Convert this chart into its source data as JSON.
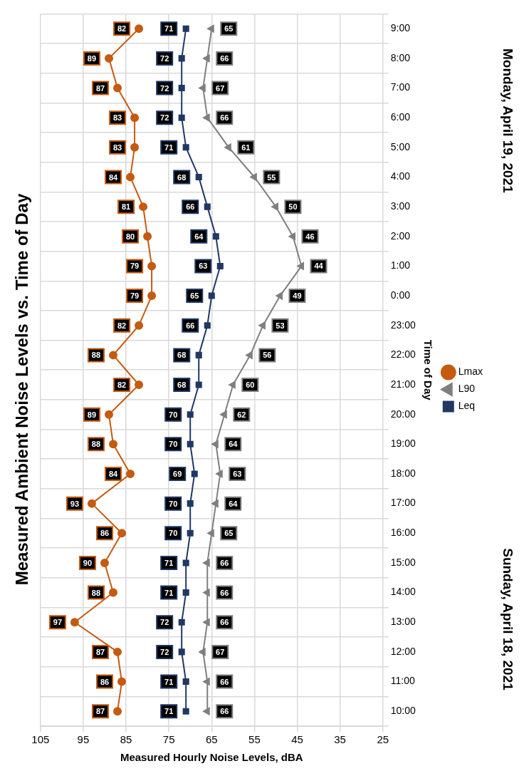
{
  "chart_data": {
    "type": "line",
    "title": "Measured Ambient Noise Levels vs. Time of Day",
    "xlabel": "Measured Hourly Noise Levels, dBA",
    "ylabel": "Time of Day",
    "orientation": "horizontal",
    "categories": [
      "9:00",
      "8:00",
      "7:00",
      "6:00",
      "5:00",
      "4:00",
      "3:00",
      "2:00",
      "1:00",
      "0:00",
      "23:00",
      "22:00",
      "21:00",
      "20:00",
      "19:00",
      "18:00",
      "17:00",
      "16:00",
      "15:00",
      "14:00",
      "13:00",
      "12:00",
      "11:00",
      "10:00"
    ],
    "series": [
      {
        "name": "Lmax",
        "color": "#c55a11",
        "marker": "circle",
        "values": [
          82,
          89,
          87,
          83,
          83,
          84,
          81,
          80,
          79,
          79,
          82,
          88,
          82,
          89,
          88,
          84,
          93,
          86,
          90,
          88,
          97,
          87,
          86,
          87
        ]
      },
      {
        "name": "L90",
        "color": "#7f7f7f",
        "marker": "triangle",
        "values": [
          65,
          66,
          67,
          66,
          61,
          55,
          50,
          46,
          44,
          49,
          53,
          56,
          60,
          62,
          64,
          63,
          64,
          65,
          66,
          66,
          66,
          67,
          66,
          66
        ]
      },
      {
        "name": "Leq",
        "color": "#203864",
        "marker": "square",
        "values": [
          71,
          72,
          72,
          72,
          71,
          68,
          66,
          64,
          63,
          65,
          66,
          68,
          68,
          70,
          70,
          69,
          70,
          70,
          71,
          71,
          72,
          72,
          71,
          71
        ]
      }
    ],
    "xlim": [
      105,
      25
    ],
    "xticks": [
      105,
      95,
      85,
      75,
      65,
      55,
      45,
      35,
      25
    ],
    "grid": true,
    "legend": "right",
    "data_labels": true,
    "annotations": [
      "Sunday, April 18, 2021",
      "Monday, April 19, 2021"
    ]
  }
}
